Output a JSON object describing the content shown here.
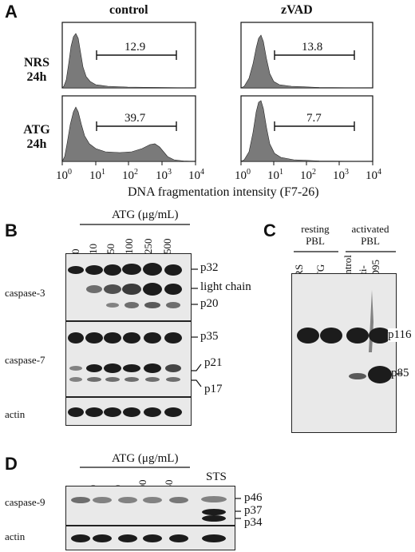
{
  "panelA": {
    "label": "A",
    "col_control": "control",
    "col_zvad": "zVAD",
    "row_nrs": [
      "NRS",
      "24h"
    ],
    "row_atg": [
      "ATG",
      "24h"
    ],
    "values": {
      "nrs_control": "12.9",
      "nrs_zvad": "13.8",
      "atg_control": "39.7",
      "atg_zvad": "7.7"
    },
    "axis_ticks": [
      {
        "base": "10",
        "exp": "0"
      },
      {
        "base": "10",
        "exp": "1"
      },
      {
        "base": "10",
        "exp": "2"
      },
      {
        "base": "10",
        "exp": "3"
      },
      {
        "base": "10",
        "exp": "4"
      }
    ],
    "xlabel": "DNA fragmentation intensity (F7-26)"
  },
  "panelB": {
    "label": "B",
    "header": "ATG (μg/mL)",
    "lanes": [
      "0",
      "10",
      "50",
      "100",
      "250",
      "500"
    ],
    "rows": [
      "caspase-3",
      "caspase-7",
      "actin"
    ],
    "bands": [
      "p32",
      "light chain",
      "p20",
      "p35",
      "p21",
      "p17"
    ]
  },
  "panelC": {
    "label": "C",
    "group1": [
      "resting",
      "PBL"
    ],
    "group2": [
      "activated",
      "PBL"
    ],
    "lanes": [
      "NRS",
      "ATG",
      "control",
      "anti-",
      "CD95"
    ],
    "bands": [
      "p116",
      "p85"
    ]
  },
  "panelD": {
    "label": "D",
    "header": "ATG (μg/mL)",
    "lanes": [
      "0",
      "10",
      "50",
      "100",
      "250",
      "STS"
    ],
    "rows": [
      "caspase-9",
      "actin"
    ],
    "bands": [
      "p46",
      "p37",
      "p34"
    ]
  },
  "colors": {
    "ink": "#111111",
    "fill": "#7a7a7a",
    "blot_bg": "#e9e9e9",
    "band": "#1c1c1c"
  }
}
